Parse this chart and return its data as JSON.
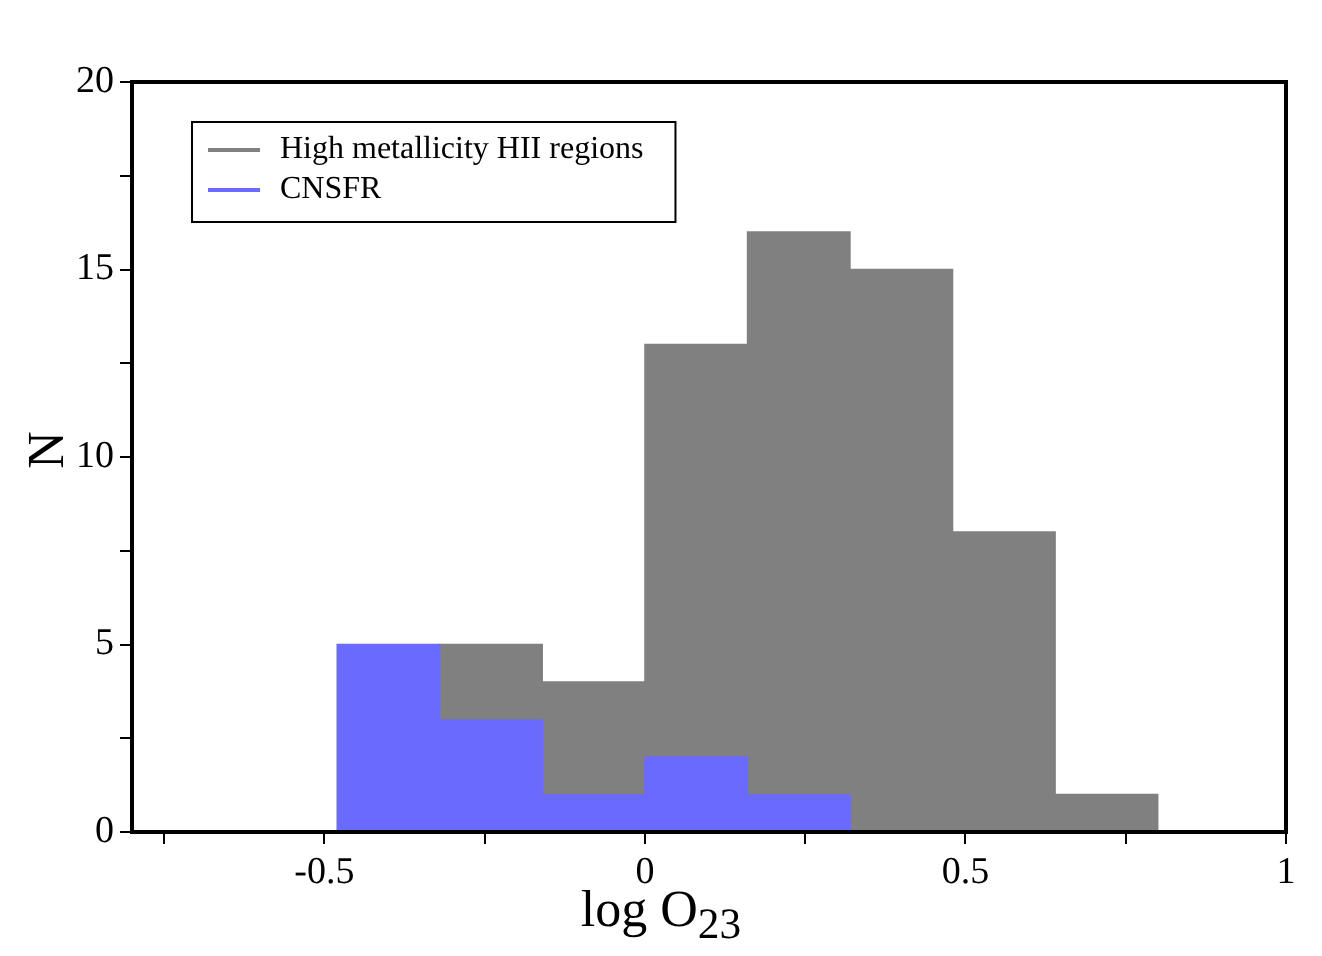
{
  "chart_data": {
    "type": "histogram",
    "xlabel": "log O$_{23}$",
    "ylabel": "N",
    "bins": [
      -0.8,
      -0.64,
      -0.48,
      -0.32,
      -0.16,
      0,
      0.16,
      0.32,
      0.48,
      0.64,
      0.8
    ],
    "series": [
      {
        "name": "High metallicity HII regions",
        "color": "#808080",
        "values": [
          0,
          0,
          null,
          5,
          4,
          13,
          16,
          15,
          8,
          1
        ]
      },
      {
        "name": "CNSFR",
        "color": "#6a6aff",
        "values": [
          0,
          0,
          5,
          3,
          1,
          2,
          1,
          0,
          0,
          0
        ]
      }
    ],
    "xlim": [
      -0.8,
      1
    ],
    "xticks": [
      {
        "value": -0.75,
        "label": null
      },
      -0.5,
      {
        "value": -0.25,
        "label": null
      },
      0,
      {
        "value": 0.25,
        "label": null
      },
      0.5,
      {
        "value": 0.75,
        "label": null
      },
      1
    ],
    "ylim": [
      0,
      20
    ],
    "yticks": [
      0,
      {
        "value": 2.5,
        "label": null
      },
      5,
      {
        "value": 7.5,
        "label": null
      },
      10,
      {
        "value": 12.5,
        "label": null
      },
      15,
      {
        "value": 17.5,
        "label": null
      },
      20
    ],
    "grid": false,
    "legend": "top left"
  }
}
